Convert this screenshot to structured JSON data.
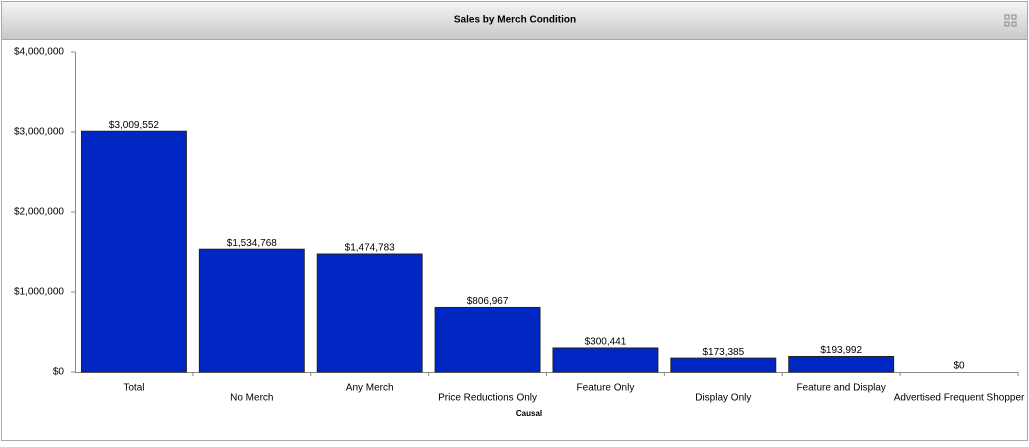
{
  "chart_data": {
    "type": "bar",
    "title": "Sales by Merch Condition",
    "x_label": "Causal",
    "categories": [
      "Total",
      "No Merch",
      "Any Merch",
      "Price Reductions Only",
      "Feature Only",
      "Display Only",
      "Feature and Display",
      "Advertised Frequent Shopper"
    ],
    "values": [
      3009552,
      1534768,
      1474783,
      806967,
      300441,
      173385,
      193992,
      0
    ],
    "value_labels": [
      "$3,009,552",
      "$1,534,768",
      "$1,474,783",
      "$806,967",
      "$300,441",
      "$173,385",
      "$193,992",
      "$0"
    ],
    "color": "#0026c4",
    "ylim": [
      0,
      4000000
    ],
    "yticks": [
      {
        "value": 0,
        "label": "$0"
      },
      {
        "value": 1000000,
        "label": "$1,000,000"
      },
      {
        "value": 2000000,
        "label": "$2,000,000"
      },
      {
        "value": 3000000,
        "label": "$3,000,000"
      },
      {
        "value": 4000000,
        "label": "$4,000,000"
      }
    ],
    "grid": false
  }
}
